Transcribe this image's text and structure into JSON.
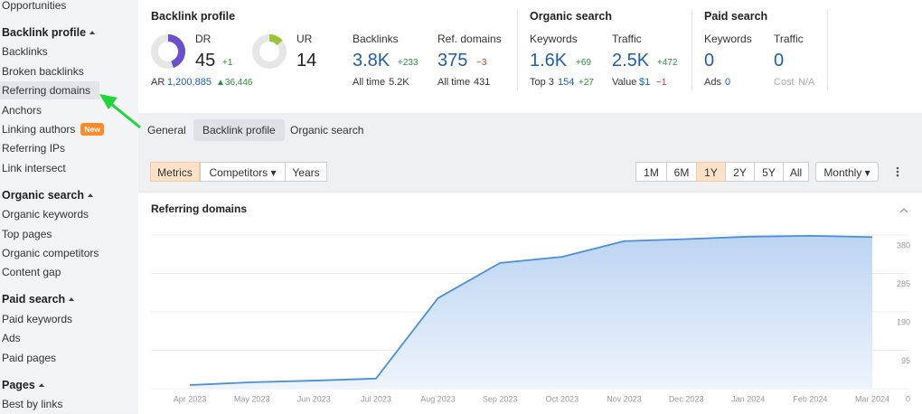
{
  "sidebar": {
    "top_item": "Opportunities",
    "sections": [
      {
        "title": "Backlink profile",
        "items": [
          "Backlinks",
          "Broken backlinks",
          "Referring domains",
          "Anchors",
          {
            "label": "Linking authors",
            "badge": "New"
          },
          "Referring IPs",
          "Link intersect"
        ]
      },
      {
        "title": "Organic search",
        "items": [
          "Organic keywords",
          "Top pages",
          "Organic competitors",
          "Content gap"
        ]
      },
      {
        "title": "Paid search",
        "items": [
          "Paid keywords",
          "Ads",
          "Paid pages"
        ]
      },
      {
        "title": "Pages",
        "items": [
          "Best by links"
        ]
      }
    ]
  },
  "metrics": {
    "backlink_profile": {
      "title": "Backlink profile",
      "dr": {
        "label": "DR",
        "value": "45",
        "change": "+1"
      },
      "ur": {
        "label": "UR",
        "value": "14"
      },
      "ar": {
        "label": "AR",
        "value": "1,200,885",
        "change": "▲36,446"
      },
      "backlinks": {
        "label": "Backlinks",
        "value": "3.8K",
        "change": "+233",
        "sub_label": "All time",
        "sub_value": "5.2K"
      },
      "ref_domains": {
        "label": "Ref. domains",
        "value": "375",
        "change": "−3",
        "sub_label": "All time",
        "sub_value": "431"
      }
    },
    "organic_search": {
      "title": "Organic search",
      "keywords": {
        "label": "Keywords",
        "value": "1.6K",
        "change": "+69",
        "sub_label": "Top 3",
        "sub_value": "154",
        "sub_change": "+27"
      },
      "traffic": {
        "label": "Traffic",
        "value": "2.5K",
        "change": "+472",
        "sub_label": "Value",
        "sub_value": "$1",
        "sub_change": "−1"
      }
    },
    "paid_search": {
      "title": "Paid search",
      "keywords": {
        "label": "Keywords",
        "value": "0",
        "sub_label": "Ads",
        "sub_value": "0"
      },
      "traffic": {
        "label": "Traffic",
        "value": "0",
        "sub_label": "Cost",
        "sub_value": "N/A"
      }
    }
  },
  "tabs": [
    "General",
    "Backlink profile",
    "Organic search"
  ],
  "view_buttons": [
    "Metrics",
    "Competitors ▾",
    "Years"
  ],
  "periods": [
    "1M",
    "6M",
    "1Y",
    "2Y",
    "5Y",
    "All"
  ],
  "interval": "Monthly ▾",
  "chart_data": {
    "type": "area",
    "title": "Referring domains",
    "color": "#4a8fd8",
    "categories": [
      "Apr 2023",
      "May 2023",
      "Jun 2023",
      "Jul 2023",
      "Aug 2023",
      "Sep 2023",
      "Oct 2023",
      "Nov 2023",
      "Dec 2023",
      "Jan 2024",
      "Feb 2024",
      "Mar 2024"
    ],
    "values": [
      9,
      16,
      20,
      25,
      224,
      311,
      326,
      365,
      370,
      376,
      378,
      375
    ],
    "ylim": [
      0,
      380
    ],
    "yticks": [
      0,
      95,
      190,
      285,
      380
    ],
    "grid": true
  }
}
